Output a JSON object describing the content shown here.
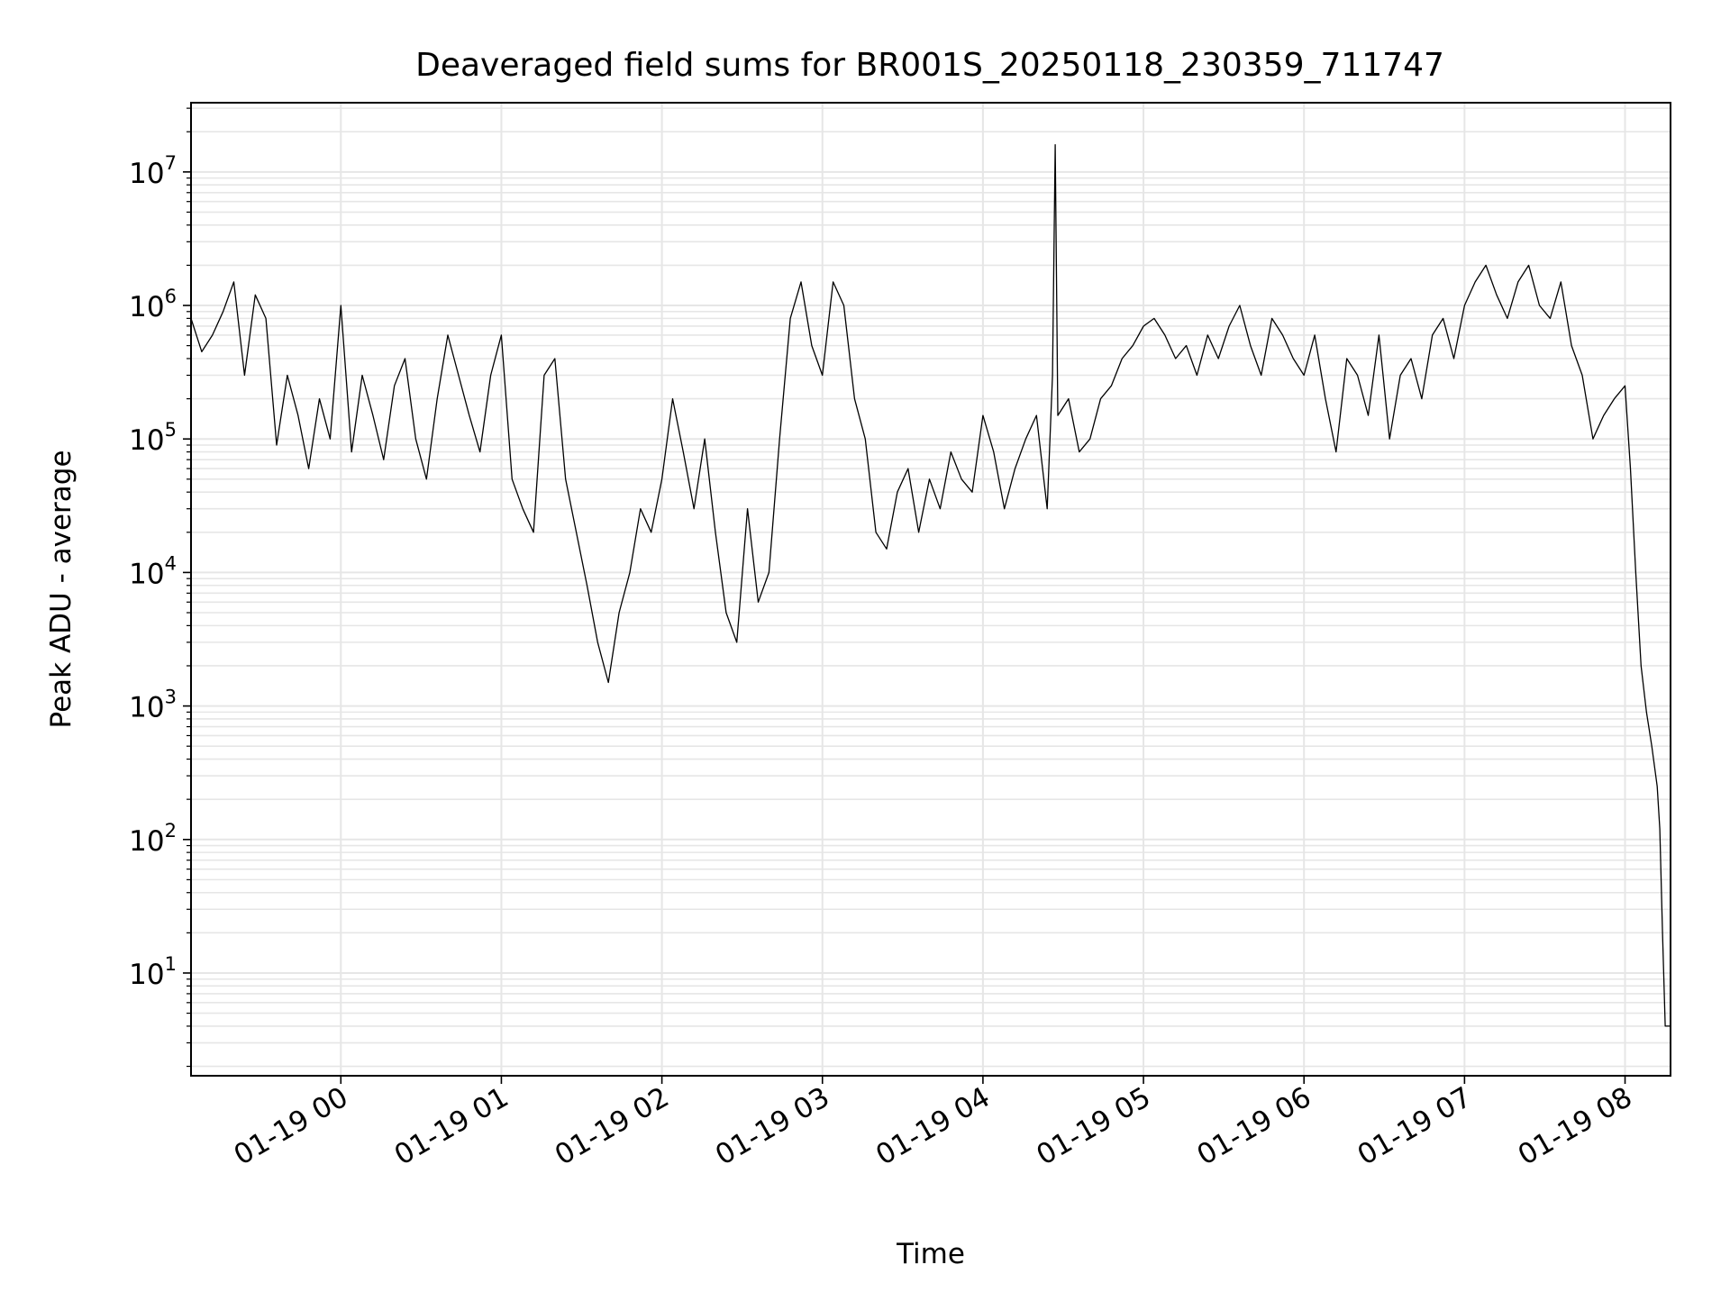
{
  "chart_data": {
    "type": "line",
    "title": "Deaveraged field sums for BR001S_20250118_230359_711747",
    "xlabel": "Time",
    "ylabel": "Peak ADU - average",
    "yscale": "log",
    "ylim": [
      1.7,
      33000000
    ],
    "xlim": [
      "2025-01-18 23:04",
      "2025-01-19 08:17"
    ],
    "grid": true,
    "color": "#000000",
    "x_ticks": [
      {
        "t": "2025-01-19 00:00",
        "label": "01-19 00"
      },
      {
        "t": "2025-01-19 01:00",
        "label": "01-19 01"
      },
      {
        "t": "2025-01-19 02:00",
        "label": "01-19 02"
      },
      {
        "t": "2025-01-19 03:00",
        "label": "01-19 03"
      },
      {
        "t": "2025-01-19 04:00",
        "label": "01-19 04"
      },
      {
        "t": "2025-01-19 05:00",
        "label": "01-19 05"
      },
      {
        "t": "2025-01-19 06:00",
        "label": "01-19 06"
      },
      {
        "t": "2025-01-19 07:00",
        "label": "01-19 07"
      },
      {
        "t": "2025-01-19 08:00",
        "label": "01-19 08"
      }
    ],
    "y_ticks": [
      {
        "v": 10,
        "base": "10",
        "exp": "1"
      },
      {
        "v": 100,
        "base": "10",
        "exp": "2"
      },
      {
        "v": 1000,
        "base": "10",
        "exp": "3"
      },
      {
        "v": 10000,
        "base": "10",
        "exp": "4"
      },
      {
        "v": 100000,
        "base": "10",
        "exp": "5"
      },
      {
        "v": 1000000,
        "base": "10",
        "exp": "6"
      },
      {
        "v": 10000000,
        "base": "10",
        "exp": "7"
      }
    ],
    "series": [
      {
        "x": [
          "2025-01-18 23:04",
          "2025-01-18 23:08",
          "2025-01-18 23:12",
          "2025-01-18 23:16",
          "2025-01-18 23:20",
          "2025-01-18 23:24",
          "2025-01-18 23:28",
          "2025-01-18 23:32",
          "2025-01-18 23:36",
          "2025-01-18 23:40",
          "2025-01-18 23:44",
          "2025-01-18 23:48",
          "2025-01-18 23:52",
          "2025-01-18 23:56",
          "2025-01-19 00:00",
          "2025-01-19 00:04",
          "2025-01-19 00:08",
          "2025-01-19 00:12",
          "2025-01-19 00:16",
          "2025-01-19 00:20",
          "2025-01-19 00:24",
          "2025-01-19 00:28",
          "2025-01-19 00:32",
          "2025-01-19 00:36",
          "2025-01-19 00:40",
          "2025-01-19 00:44",
          "2025-01-19 00:48",
          "2025-01-19 00:52",
          "2025-01-19 00:56",
          "2025-01-19 01:00",
          "2025-01-19 01:04",
          "2025-01-19 01:08",
          "2025-01-19 01:12",
          "2025-01-19 01:16",
          "2025-01-19 01:20",
          "2025-01-19 01:24",
          "2025-01-19 01:28",
          "2025-01-19 01:32",
          "2025-01-19 01:36",
          "2025-01-19 01:40",
          "2025-01-19 01:44",
          "2025-01-19 01:48",
          "2025-01-19 01:52",
          "2025-01-19 01:56",
          "2025-01-19 02:00",
          "2025-01-19 02:04",
          "2025-01-19 02:08",
          "2025-01-19 02:12",
          "2025-01-19 02:16",
          "2025-01-19 02:20",
          "2025-01-19 02:24",
          "2025-01-19 02:28",
          "2025-01-19 02:32",
          "2025-01-19 02:36",
          "2025-01-19 02:40",
          "2025-01-19 02:44",
          "2025-01-19 02:48",
          "2025-01-19 02:52",
          "2025-01-19 02:56",
          "2025-01-19 03:00",
          "2025-01-19 03:04",
          "2025-01-19 03:08",
          "2025-01-19 03:12",
          "2025-01-19 03:16",
          "2025-01-19 03:20",
          "2025-01-19 03:24",
          "2025-01-19 03:28",
          "2025-01-19 03:32",
          "2025-01-19 03:36",
          "2025-01-19 03:40",
          "2025-01-19 03:44",
          "2025-01-19 03:48",
          "2025-01-19 03:52",
          "2025-01-19 03:56",
          "2025-01-19 04:00",
          "2025-01-19 04:04",
          "2025-01-19 04:08",
          "2025-01-19 04:12",
          "2025-01-19 04:16",
          "2025-01-19 04:20",
          "2025-01-19 04:24",
          "2025-01-19 04:26",
          "2025-01-19 04:27",
          "2025-01-19 04:28",
          "2025-01-19 04:32",
          "2025-01-19 04:36",
          "2025-01-19 04:40",
          "2025-01-19 04:44",
          "2025-01-19 04:48",
          "2025-01-19 04:52",
          "2025-01-19 04:56",
          "2025-01-19 05:00",
          "2025-01-19 05:04",
          "2025-01-19 05:08",
          "2025-01-19 05:12",
          "2025-01-19 05:16",
          "2025-01-19 05:20",
          "2025-01-19 05:24",
          "2025-01-19 05:28",
          "2025-01-19 05:32",
          "2025-01-19 05:36",
          "2025-01-19 05:40",
          "2025-01-19 05:44",
          "2025-01-19 05:48",
          "2025-01-19 05:52",
          "2025-01-19 05:56",
          "2025-01-19 06:00",
          "2025-01-19 06:04",
          "2025-01-19 06:08",
          "2025-01-19 06:12",
          "2025-01-19 06:16",
          "2025-01-19 06:20",
          "2025-01-19 06:24",
          "2025-01-19 06:28",
          "2025-01-19 06:32",
          "2025-01-19 06:36",
          "2025-01-19 06:40",
          "2025-01-19 06:44",
          "2025-01-19 06:48",
          "2025-01-19 06:52",
          "2025-01-19 06:56",
          "2025-01-19 07:00",
          "2025-01-19 07:04",
          "2025-01-19 07:08",
          "2025-01-19 07:12",
          "2025-01-19 07:16",
          "2025-01-19 07:20",
          "2025-01-19 07:24",
          "2025-01-19 07:28",
          "2025-01-19 07:32",
          "2025-01-19 07:36",
          "2025-01-19 07:40",
          "2025-01-19 07:44",
          "2025-01-19 07:48",
          "2025-01-19 07:52",
          "2025-01-19 07:56",
          "2025-01-19 08:00",
          "2025-01-19 08:02",
          "2025-01-19 08:04",
          "2025-01-19 08:06",
          "2025-01-19 08:08",
          "2025-01-19 08:10",
          "2025-01-19 08:12",
          "2025-01-19 08:13",
          "2025-01-19 08:14",
          "2025-01-19 08:15",
          "2025-01-19 08:16",
          "2025-01-19 08:17"
        ],
        "y": [
          800000,
          450000,
          600000,
          900000,
          1500000,
          300000,
          1200000,
          800000,
          90000,
          300000,
          150000,
          60000,
          200000,
          100000,
          1000000,
          80000,
          300000,
          150000,
          70000,
          250000,
          400000,
          100000,
          50000,
          200000,
          600000,
          300000,
          150000,
          80000,
          300000,
          600000,
          50000,
          30000,
          20000,
          300000,
          400000,
          50000,
          20000,
          8000,
          3000,
          1500,
          5000,
          10000,
          30000,
          20000,
          50000,
          200000,
          80000,
          30000,
          100000,
          20000,
          5000,
          3000,
          30000,
          6000,
          10000,
          100000,
          800000,
          1500000,
          500000,
          300000,
          1500000,
          1000000,
          200000,
          100000,
          20000,
          15000,
          40000,
          60000,
          20000,
          50000,
          30000,
          80000,
          50000,
          40000,
          150000,
          80000,
          30000,
          60000,
          100000,
          150000,
          30000,
          300000,
          16000000,
          150000,
          200000,
          80000,
          100000,
          200000,
          250000,
          400000,
          500000,
          700000,
          800000,
          600000,
          400000,
          500000,
          300000,
          600000,
          400000,
          700000,
          1000000,
          500000,
          300000,
          800000,
          600000,
          400000,
          300000,
          600000,
          200000,
          80000,
          400000,
          300000,
          150000,
          600000,
          100000,
          300000,
          400000,
          200000,
          600000,
          800000,
          400000,
          1000000,
          1500000,
          2000000,
          1200000,
          800000,
          1500000,
          2000000,
          1000000,
          800000,
          1500000,
          500000,
          300000,
          100000,
          150000,
          200000,
          250000,
          60000,
          10000,
          2000,
          900,
          500,
          250,
          120,
          20,
          4,
          4,
          4
        ],
        "display_y": [
          800000,
          450000,
          600000,
          900000,
          1500000,
          300000,
          1200000,
          800000,
          90000,
          300000,
          150000,
          60000,
          200000,
          100000,
          1000000,
          80000,
          300000,
          150000,
          70000,
          250000,
          400000,
          100000,
          50000,
          200000,
          600000,
          300000,
          150000,
          80000,
          300000,
          600000,
          50000,
          30000,
          20000,
          300000,
          400000,
          50000,
          20000,
          8000,
          3000,
          1500,
          5000,
          10000,
          30000,
          20000,
          50000,
          200000,
          80000,
          30000,
          100000,
          20000,
          5000,
          3000,
          30000,
          6000,
          10000,
          100000,
          800000,
          1500000,
          500000,
          300000,
          1500000,
          1000000,
          200000,
          100000,
          20000,
          15000,
          40000,
          60000,
          20000,
          50000,
          30000,
          80000,
          50000,
          40000,
          150000,
          80000,
          30000,
          60000,
          100000,
          150000,
          30000,
          300000,
          16000000,
          150000,
          200000,
          80000,
          100000,
          200000,
          250000,
          400000,
          500000,
          700000,
          800000,
          600000,
          400000,
          500000,
          300000,
          600000,
          400000,
          700000,
          1000000,
          500000,
          300000,
          800000,
          600000,
          400000,
          300000,
          600000,
          200000,
          80000,
          400000,
          300000,
          150000,
          600000,
          100000,
          300000,
          400000,
          200000,
          600000,
          800000,
          400000,
          1000000,
          1500000,
          2000000,
          1200000,
          800000,
          1500000,
          2000000,
          1000000,
          800000,
          1500000,
          500000,
          300000,
          100000,
          150000,
          200000,
          250000,
          60000,
          10000,
          2000,
          900,
          500,
          250,
          120,
          20,
          4,
          4,
          4
        ]
      }
    ]
  }
}
